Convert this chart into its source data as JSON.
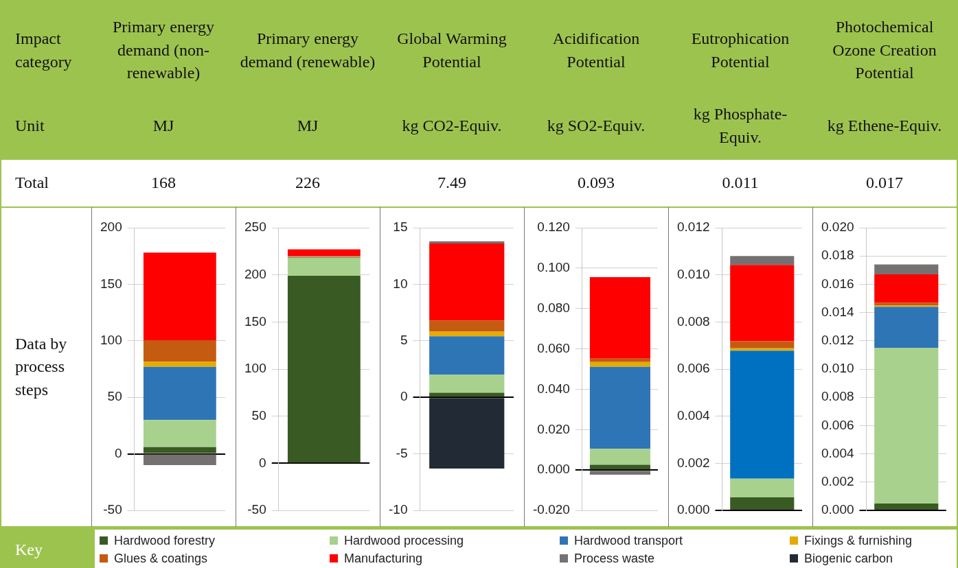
{
  "chart_data": [
    {
      "type": "other",
      "annotations": [
        "Impact category",
        "Unit",
        "Total",
        "Data by process steps",
        "Key"
      ]
    },
    {
      "type": "bar",
      "title": "Primary energy demand (non-renewable)",
      "ylabel": "MJ",
      "annotations": [
        "168"
      ],
      "categories": [
        null
      ],
      "stacked": true,
      "ylim": [
        -50,
        200
      ],
      "yticks": [
        -50,
        0,
        50,
        100,
        150,
        200
      ],
      "grid": "y",
      "legend": "bottom",
      "tick_labels": "y",
      "series": [
        {
          "name": "Hardwood forestry",
          "color": "#3a5a24",
          "values": [
            6
          ]
        },
        {
          "name": "Hardwood processing",
          "color": "#a9d18e",
          "values": [
            24
          ]
        },
        {
          "name": "Hardwood transport",
          "color": "#2e75b6",
          "values": [
            47
          ]
        },
        {
          "name": "Fixings & furnishing",
          "color": "#e5ab00",
          "values": [
            4.5
          ]
        },
        {
          "name": "Glues & coatings",
          "color": "#c55a11",
          "values": [
            19
          ]
        },
        {
          "name": "Manufacturing",
          "color": "#ff0000",
          "values": [
            77.5
          ]
        },
        {
          "name": "Process waste",
          "color": "#767171",
          "values": [
            -10
          ]
        },
        {
          "name": "Biogenic carbon",
          "color": "#222a35",
          "values": [
            0
          ]
        }
      ]
    },
    {
      "type": "bar",
      "title": "Primary energy demand (renewable)",
      "ylabel": "MJ",
      "annotations": [
        "226"
      ],
      "categories": [
        null
      ],
      "stacked": true,
      "ylim": [
        -50,
        250
      ],
      "yticks": [
        -50,
        0,
        50,
        100,
        150,
        200,
        250
      ],
      "grid": "y",
      "tick_labels": "y",
      "series": [
        {
          "color": "#3a5a24",
          "values": [
            199
          ]
        },
        {
          "color": "#a9d18e",
          "values": [
            19
          ]
        },
        {
          "color": "#2e75b6",
          "values": [
            0.5
          ]
        },
        {
          "color": "#e5ab00",
          "values": [
            0.5
          ]
        },
        {
          "color": "#c55a11",
          "values": [
            1
          ]
        },
        {
          "color": "#ff0000",
          "values": [
            7
          ]
        }
      ]
    },
    {
      "type": "bar",
      "title": "Global Warming Potential",
      "ylabel": "kg CO2-Equiv.",
      "annotations": [
        "7.49"
      ],
      "categories": [
        null
      ],
      "stacked": true,
      "ylim": [
        -10,
        15
      ],
      "yticks": [
        -10,
        -5,
        0,
        5,
        10,
        15
      ],
      "grid": "y",
      "tick_labels": "y",
      "series": [
        {
          "color": "#3a5a24",
          "values": [
            0.4
          ]
        },
        {
          "color": "#a9d18e",
          "values": [
            1.6
          ]
        },
        {
          "color": "#2e75b6",
          "values": [
            3.4
          ]
        },
        {
          "color": "#e5ab00",
          "values": [
            0.4
          ]
        },
        {
          "color": "#c55a11",
          "values": [
            1.0
          ]
        },
        {
          "color": "#ff0000",
          "values": [
            6.8
          ]
        },
        {
          "color": "#767171",
          "values": [
            0.2
          ]
        },
        {
          "color": "#222a35",
          "values": [
            -6.3
          ]
        }
      ]
    },
    {
      "type": "bar",
      "title": "Acidification Potential",
      "ylabel": "kg SO2-Equiv.",
      "annotations": [
        "0.093"
      ],
      "categories": [
        null
      ],
      "stacked": true,
      "ylim": [
        -0.02,
        0.12
      ],
      "yticks": [
        {
          "value": -0.02,
          "label": "-0.020"
        },
        {
          "value": 0,
          "label": "0.000"
        },
        {
          "value": 0.02,
          "label": "0.020"
        },
        {
          "value": 0.04,
          "label": "0.040"
        },
        {
          "value": 0.06,
          "label": "0.060"
        },
        {
          "value": 0.08,
          "label": "0.080"
        },
        {
          "value": 0.1,
          "label": "0.100"
        },
        {
          "value": 0.12,
          "label": "0.120"
        }
      ],
      "grid": "y",
      "tick_labels": "y",
      "series": [
        {
          "color": "#3a5a24",
          "values": [
            0.0026
          ]
        },
        {
          "color": "#a9d18e",
          "values": [
            0.0079
          ]
        },
        {
          "color": "#2e75b6",
          "values": [
            0.0406
          ]
        },
        {
          "color": "#e5ab00",
          "values": [
            0.0024
          ]
        },
        {
          "color": "#c55a11",
          "values": [
            0.0017
          ]
        },
        {
          "color": "#ff0000",
          "values": [
            0.0403
          ]
        },
        {
          "color": "#767171",
          "values": [
            -0.0023
          ]
        }
      ]
    },
    {
      "type": "bar",
      "title": "Eutrophication Potential",
      "ylabel": "kg Phosphate-Equiv.",
      "annotations": [
        "0.011"
      ],
      "categories": [
        null
      ],
      "stacked": true,
      "ylim": [
        0,
        0.012
      ],
      "yticks": [
        {
          "value": 0,
          "label": "0.000"
        },
        {
          "value": 0.002,
          "label": "0.002"
        },
        {
          "value": 0.004,
          "label": "0.004"
        },
        {
          "value": 0.006,
          "label": "0.006"
        },
        {
          "value": 0.008,
          "label": "0.008"
        },
        {
          "value": 0.01,
          "label": "0.010"
        },
        {
          "value": 0.012,
          "label": "0.012"
        }
      ],
      "grid": "y",
      "tick_labels": "y",
      "series": [
        {
          "color": "#3a5a24",
          "values": [
            0.00055
          ]
        },
        {
          "color": "#a9d18e",
          "values": [
            0.0008
          ]
        },
        {
          "color": "#0070c0",
          "values": [
            0.00543
          ]
        },
        {
          "color": "#e5ab00",
          "values": [
            0.0001
          ]
        },
        {
          "color": "#c55a11",
          "values": [
            0.0003
          ]
        },
        {
          "color": "#ff0000",
          "values": [
            0.00324
          ]
        },
        {
          "color": "#767171",
          "values": [
            0.00038
          ]
        }
      ]
    },
    {
      "type": "bar",
      "title": "Photochemical Ozone Creation Potential",
      "ylabel": "kg Ethene-Equiv.",
      "annotations": [
        "0.017"
      ],
      "categories": [
        null
      ],
      "stacked": true,
      "ylim": [
        0,
        0.02
      ],
      "yticks": [
        {
          "value": 0,
          "label": "0.000"
        },
        {
          "value": 0.002,
          "label": "0.002"
        },
        {
          "value": 0.004,
          "label": "0.004"
        },
        {
          "value": 0.006,
          "label": "0.006"
        },
        {
          "value": 0.008,
          "label": "0.008"
        },
        {
          "value": 0.01,
          "label": "0.010"
        },
        {
          "value": 0.012,
          "label": "0.012"
        },
        {
          "value": 0.014,
          "label": "0.014"
        },
        {
          "value": 0.016,
          "label": "0.016"
        },
        {
          "value": 0.018,
          "label": "0.018"
        },
        {
          "value": 0.02,
          "label": "0.020"
        }
      ],
      "grid": "y",
      "tick_labels": "y",
      "series": [
        {
          "color": "#3a5a24",
          "values": [
            0.00048
          ]
        },
        {
          "color": "#a9d18e",
          "values": [
            0.01102
          ]
        },
        {
          "color": "#2e75b6",
          "values": [
            0.0029
          ]
        },
        {
          "color": "#e5ab00",
          "values": [
            0.0001
          ]
        },
        {
          "color": "#c55a11",
          "values": [
            0.0002
          ]
        },
        {
          "color": "#ff0000",
          "values": [
            0.002
          ]
        },
        {
          "color": "#767171",
          "values": [
            0.0007
          ]
        }
      ]
    }
  ]
}
